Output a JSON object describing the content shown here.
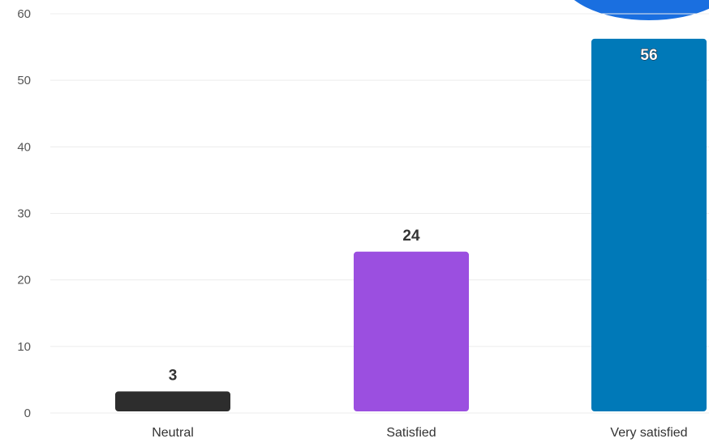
{
  "chart_data": {
    "type": "bar",
    "categories": [
      "Neutral",
      "Satisfied",
      "Very satisfied"
    ],
    "values": [
      3,
      24,
      56
    ],
    "colors": [
      "#2d2d2d",
      "#9b4fe0",
      "#0079b8"
    ],
    "ylim": [
      0,
      60
    ],
    "yticks": [
      0,
      10,
      20,
      30,
      40,
      50,
      60
    ],
    "grid": true,
    "title": "",
    "xlabel": "",
    "ylabel": ""
  },
  "decoration": {
    "corner_shape_color": "#1a6fe0"
  }
}
